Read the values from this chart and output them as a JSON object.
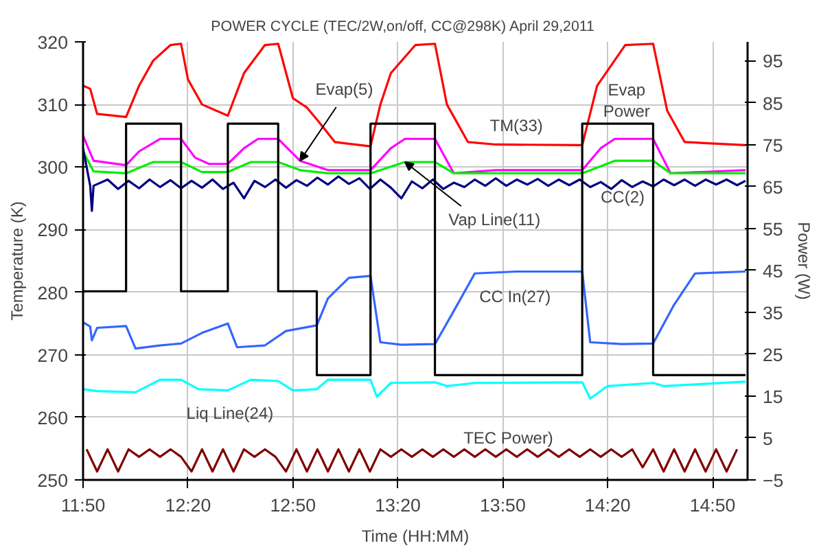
{
  "chart_data": {
    "type": "line",
    "title": "POWER CYCLE   (TEC/2W,on/off, CC@298K)     April 29,2011",
    "xlabel": "Time (HH:MM)",
    "ylabel": "Temperature (K)",
    "y2label": "Power (W)",
    "xlim": [
      11.833,
      15.0
    ],
    "xticks": [
      {
        "value": 11.833,
        "label": "11:50"
      },
      {
        "value": 12.3333,
        "label": "12:20"
      },
      {
        "value": 12.8333,
        "label": "12:50"
      },
      {
        "value": 13.3333,
        "label": "13:20"
      },
      {
        "value": 13.8333,
        "label": "13:50"
      },
      {
        "value": 14.3333,
        "label": "14:20"
      },
      {
        "value": 14.8333,
        "label": "14:50"
      }
    ],
    "ylim": [
      250,
      320
    ],
    "yticks": [
      250,
      260,
      270,
      280,
      290,
      300,
      310,
      320
    ],
    "y2lim": [
      -5,
      99.5
    ],
    "y2ticks": [
      -5,
      5,
      15,
      25,
      35,
      45,
      55,
      65,
      75,
      85,
      95
    ],
    "grid": true,
    "series": [
      {
        "name": "TM(33)",
        "color": "#ff0000",
        "x": [
          11.833,
          11.867,
          11.9,
          12.038,
          12.1,
          12.167,
          12.25,
          12.3,
          12.333,
          12.4,
          12.523,
          12.6,
          12.7,
          12.763,
          12.833,
          12.9,
          12.95,
          13.033,
          13.203,
          13.25,
          13.3,
          13.417,
          13.51,
          13.567,
          13.667,
          13.8,
          14.212,
          14.283,
          14.417,
          14.55,
          14.617,
          14.7,
          14.99
        ],
        "values": [
          313,
          312.5,
          308.5,
          308,
          313,
          317,
          319.5,
          319.7,
          314,
          310,
          308.2,
          315,
          319.5,
          319.7,
          311,
          309.5,
          307.5,
          304,
          303.3,
          310,
          315,
          319.5,
          319.7,
          310,
          304,
          303.6,
          303.5,
          313,
          319.5,
          319.7,
          309,
          304,
          303.5
        ]
      },
      {
        "name": "Evap(5)",
        "color": "#ff00ff",
        "x": [
          11.833,
          11.883,
          12.038,
          12.1,
          12.2,
          12.3,
          12.367,
          12.433,
          12.523,
          12.6,
          12.667,
          12.763,
          12.867,
          13.0,
          13.203,
          13.3,
          13.367,
          13.51,
          13.6,
          13.8,
          14.212,
          14.3,
          14.367,
          14.55,
          14.633,
          14.99
        ],
        "values": [
          305,
          301,
          300.3,
          302.5,
          304.5,
          304.5,
          301.5,
          300.5,
          300.5,
          303,
          304.5,
          304.5,
          301,
          299.5,
          299.5,
          303,
          304.5,
          304.5,
          299,
          299.5,
          299.5,
          303,
          304.5,
          304.5,
          299,
          299.5
        ]
      },
      {
        "name": "Vap Line(11)",
        "color": "#00ee00",
        "x": [
          11.833,
          11.883,
          12.038,
          12.167,
          12.3,
          12.4,
          12.523,
          12.633,
          12.763,
          12.867,
          13.0,
          13.203,
          13.367,
          13.51,
          13.6,
          14.212,
          14.367,
          14.55,
          14.633,
          14.99
        ],
        "values": [
          302.5,
          299.3,
          299,
          300.8,
          300.8,
          299.2,
          299.2,
          300.8,
          300.8,
          299.5,
          299,
          299,
          300.8,
          300.8,
          299,
          299,
          301,
          301,
          299,
          299
        ]
      },
      {
        "name": "CC(2)",
        "color": "#000080",
        "x": [
          11.833,
          11.867,
          11.875,
          11.883,
          11.95,
          12.0,
          12.05,
          12.1,
          12.15,
          12.2,
          12.25,
          12.3,
          12.35,
          12.4,
          12.45,
          12.5,
          12.55,
          12.6,
          12.65,
          12.7,
          12.75,
          12.8,
          12.85,
          12.9,
          12.95,
          13.0,
          13.05,
          13.1,
          13.15,
          13.2,
          13.25,
          13.3,
          13.35,
          13.4,
          13.45,
          13.5,
          13.55,
          13.6,
          13.65,
          13.7,
          13.75,
          13.8,
          13.85,
          13.9,
          13.95,
          14.0,
          14.05,
          14.1,
          14.15,
          14.2,
          14.25,
          14.3,
          14.35,
          14.4,
          14.45,
          14.5,
          14.55,
          14.6,
          14.65,
          14.7,
          14.75,
          14.8,
          14.85,
          14.9,
          14.95,
          14.99
        ],
        "values": [
          303,
          297,
          293,
          297,
          298,
          296.5,
          297.8,
          296.6,
          298,
          296.8,
          297.9,
          296.6,
          297.8,
          296.7,
          298,
          296.5,
          297.5,
          295,
          297.8,
          296.8,
          298,
          296.7,
          297.9,
          297,
          298.3,
          297.2,
          298.5,
          297.3,
          298.2,
          296.5,
          298,
          296.7,
          295,
          297.7,
          296.6,
          298,
          296.5,
          297.5,
          296.8,
          298,
          297,
          298.2,
          297,
          298,
          297.2,
          298.1,
          297,
          298,
          297.1,
          298,
          296.8,
          297.6,
          296.5,
          297.9,
          296.8,
          297.7,
          296.9,
          298,
          297.1,
          298,
          297,
          298,
          297.2,
          298,
          297.1,
          297.8
        ]
      },
      {
        "name": "CC In(27)",
        "color": "#3366ff",
        "x": [
          11.833,
          11.867,
          11.875,
          11.9,
          12.0,
          12.038,
          12.083,
          12.2,
          12.3,
          12.4,
          12.523,
          12.567,
          12.7,
          12.8,
          12.947,
          13.0,
          13.1,
          13.203,
          13.25,
          13.35,
          13.51,
          13.6,
          13.7,
          13.9,
          14.212,
          14.25,
          14.4,
          14.55,
          14.65,
          14.75,
          14.99
        ],
        "values": [
          275.2,
          274.5,
          272.3,
          274.3,
          274.5,
          274.6,
          271,
          271.5,
          271.8,
          273.5,
          275,
          271.2,
          271.5,
          273.8,
          274.7,
          279,
          282.3,
          282.6,
          272,
          271.6,
          271.7,
          277,
          283,
          283.3,
          283.3,
          272,
          271.7,
          271.8,
          278,
          283,
          283.3
        ]
      },
      {
        "name": "Liq Line(24)",
        "color": "#00ffff",
        "x": [
          11.833,
          11.9,
          12.083,
          12.2,
          12.3,
          12.383,
          12.523,
          12.633,
          12.763,
          12.833,
          12.947,
          13.0,
          13.203,
          13.233,
          13.3,
          13.51,
          13.567,
          13.7,
          14.212,
          14.25,
          14.333,
          14.55,
          14.6,
          14.99
        ],
        "values": [
          264.5,
          264.2,
          264,
          266,
          266,
          264.5,
          264.3,
          266,
          265.8,
          264.3,
          264.5,
          266,
          266,
          263.3,
          265.5,
          265.6,
          265,
          265.5,
          265.6,
          263,
          265,
          265.5,
          265,
          265.7
        ]
      },
      {
        "name": "Evap\nPower",
        "type": "step",
        "axis": "y2",
        "color": "#000000",
        "x": [
          11.833,
          12.038,
          12.3,
          12.523,
          12.763,
          12.947,
          13.203,
          13.51,
          14.212,
          14.55,
          14.99
        ],
        "values": [
          40,
          80,
          40,
          80,
          40,
          20,
          80,
          20,
          80,
          20,
          20
        ]
      },
      {
        "name": "TEC Power)",
        "axis": "y2",
        "color": "#800000",
        "x": [
          11.85,
          11.9,
          11.95,
          12.0,
          12.05,
          12.1,
          12.15,
          12.2,
          12.25,
          12.3,
          12.35,
          12.4,
          12.45,
          12.5,
          12.55,
          12.6,
          12.65,
          12.7,
          12.75,
          12.8,
          12.85,
          12.9,
          12.95,
          13.0,
          13.05,
          13.1,
          13.15,
          13.2,
          13.25,
          13.3,
          13.35,
          13.4,
          13.45,
          13.5,
          13.55,
          13.6,
          13.65,
          13.7,
          13.75,
          13.8,
          13.85,
          13.9,
          13.95,
          14.0,
          14.05,
          14.1,
          14.15,
          14.2,
          14.25,
          14.3,
          14.35,
          14.4,
          14.45,
          14.5,
          14.55,
          14.6,
          14.65,
          14.7,
          14.75,
          14.8,
          14.85,
          14.9,
          14.95
        ],
        "values": [
          2.3,
          -3,
          2.3,
          -3,
          2.3,
          0.5,
          2.3,
          0.5,
          2.3,
          0.5,
          -3,
          2.3,
          -3,
          2.3,
          -3,
          2.3,
          0.5,
          2.3,
          0.5,
          -3,
          2.3,
          -3,
          2.3,
          -3,
          2.3,
          -3,
          2.3,
          -3,
          2.3,
          0.5,
          2.3,
          0.5,
          2.3,
          0.5,
          2.3,
          0.5,
          2.3,
          0.5,
          2.3,
          0.5,
          2.3,
          0.5,
          2.3,
          0.5,
          2.3,
          0.5,
          2.3,
          0.5,
          2.3,
          0.5,
          2.3,
          0.5,
          2.3,
          -2,
          2.3,
          -3,
          2.3,
          -3,
          2.3,
          -3,
          2.3,
          -3,
          2.3
        ]
      }
    ]
  }
}
